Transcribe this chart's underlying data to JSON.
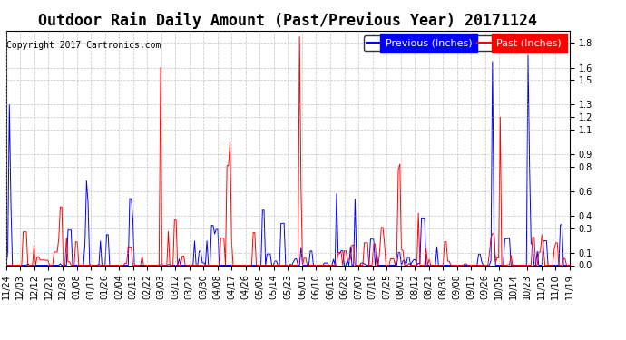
{
  "title": "Outdoor Rain Daily Amount (Past/Previous Year) 20171124",
  "copyright": "Copyright 2017 Cartronics.com",
  "legend_previous": "Previous (Inches)",
  "legend_past": "Past (Inches)",
  "color_previous": "#0000ff",
  "color_past": "#ff0000",
  "bg_color": "#ffffff",
  "grid_color": "#aaaaaa",
  "ylim": [
    0.0,
    1.9
  ],
  "yticks": [
    0.0,
    0.1,
    0.3,
    0.4,
    0.6,
    0.8,
    0.9,
    1.1,
    1.2,
    1.3,
    1.5,
    1.6,
    1.8
  ],
  "xtick_labels": [
    "11/24",
    "12/03",
    "12/12",
    "12/21",
    "12/30",
    "01/08",
    "01/17",
    "01/26",
    "02/04",
    "02/13",
    "02/22",
    "03/03",
    "03/12",
    "03/21",
    "03/30",
    "04/08",
    "04/17",
    "04/26",
    "05/05",
    "05/14",
    "05/23",
    "06/01",
    "06/10",
    "06/19",
    "06/28",
    "07/07",
    "07/16",
    "07/25",
    "08/03",
    "08/12",
    "08/21",
    "08/30",
    "09/08",
    "09/17",
    "09/26",
    "10/05",
    "10/14",
    "10/23",
    "11/01",
    "11/10",
    "11/19"
  ],
  "title_fontsize": 12,
  "copyright_fontsize": 7,
  "tick_fontsize": 7,
  "legend_fontsize": 8
}
